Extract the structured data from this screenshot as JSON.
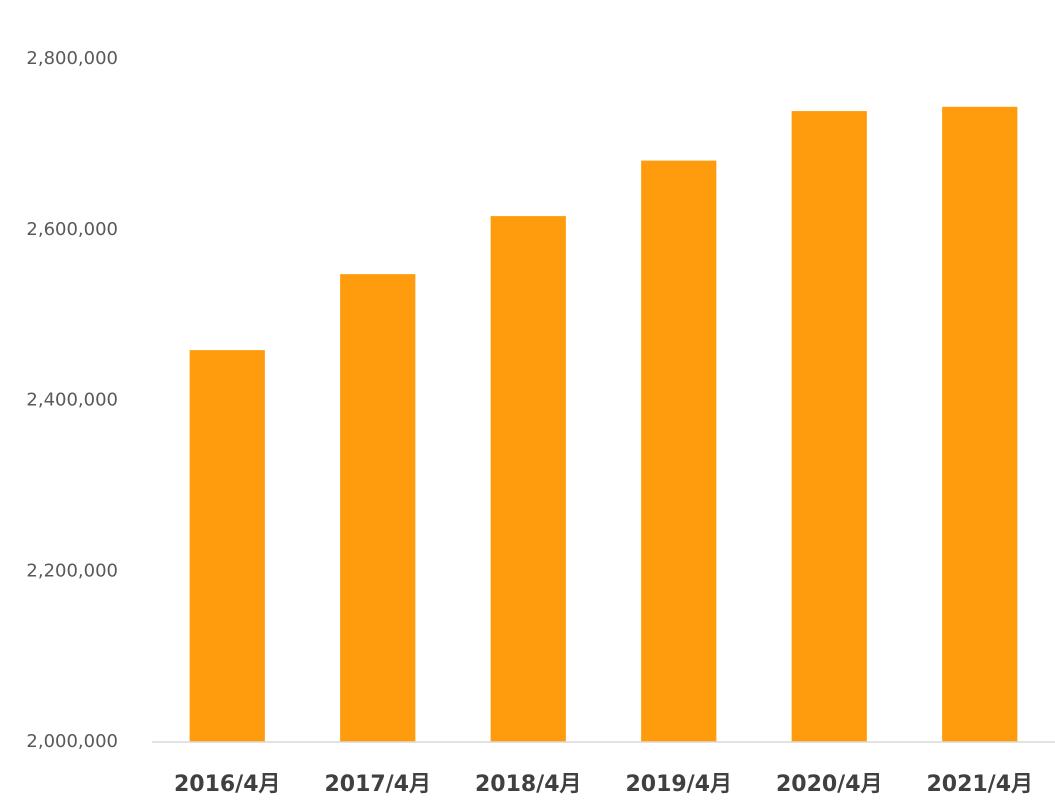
{
  "chart_data": {
    "type": "bar",
    "categories": [
      "2016/4月",
      "2017/4月",
      "2018/4月",
      "2019/4月",
      "2020/4月",
      "2021/4月"
    ],
    "values": [
      2459000,
      2548000,
      2616000,
      2681000,
      2739000,
      2744000
    ],
    "color": "#ff9c0e",
    "ylim": [
      2000000,
      2800000
    ],
    "yticks": [
      {
        "value": 2000000,
        "label": "2,000,000"
      },
      {
        "value": 2200000,
        "label": "2,200,000"
      },
      {
        "value": 2400000,
        "label": "2,400,000"
      },
      {
        "value": 2600000,
        "label": "2,600,000"
      },
      {
        "value": 2800000,
        "label": "2,800,000"
      }
    ],
    "grid": false
  }
}
